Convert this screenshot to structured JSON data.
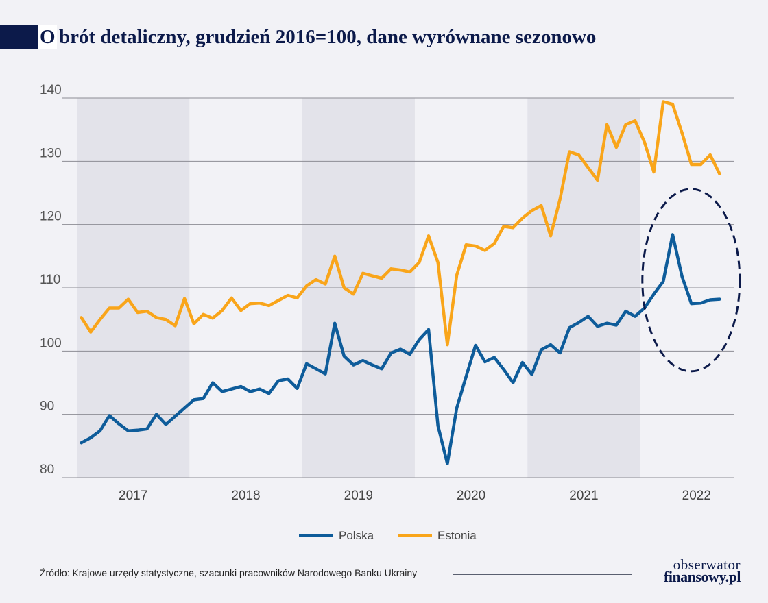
{
  "title": {
    "first_letter": "O",
    "rest": "brót detaliczny, grudzień 2016=100, dane wyrównane sezonowo"
  },
  "colors": {
    "polska": "#0e5c9a",
    "estonia": "#f9a51a",
    "band": "#e3e3ea",
    "grid": "#8c8c94",
    "ellipse": "#0c1a4a",
    "navy": "#0c1a4a"
  },
  "chart_data": {
    "type": "line",
    "ylim": [
      80,
      140
    ],
    "yticks": [
      80,
      90,
      100,
      110,
      120,
      130,
      140
    ],
    "xlim": [
      2016.5,
      2022.33
    ],
    "x_tick_labels": [
      {
        "label": "2017",
        "x": 2017.0
      },
      {
        "label": "2018",
        "x": 2018.0
      },
      {
        "label": "2019",
        "x": 2019.0
      },
      {
        "label": "2020",
        "x": 2020.0
      },
      {
        "label": "2021",
        "x": 2021.0
      },
      {
        "label": "2022",
        "x": 2022.0
      }
    ],
    "shaded_years": [
      [
        2016.5,
        2017.5
      ],
      [
        2018.5,
        2019.5
      ],
      [
        2020.5,
        2021.5
      ]
    ],
    "grid": true,
    "legend_position": "bottom-center",
    "annotation": {
      "type": "dashed-ellipse",
      "highlight_range": [
        2021.5,
        2022.33
      ]
    },
    "series": [
      {
        "name": "Polska",
        "color": "#0e5c9a",
        "x_start": 2016.54,
        "x_step": 0.0833,
        "values": [
          85.5,
          86.3,
          87.4,
          89.8,
          88.5,
          87.4,
          87.5,
          87.7,
          90.0,
          88.4,
          89.7,
          91.0,
          92.3,
          92.5,
          95.0,
          93.6,
          94.0,
          94.4,
          93.6,
          94.0,
          93.3,
          95.3,
          95.6,
          94.1,
          98.0,
          97.2,
          96.4,
          104.4,
          99.2,
          97.8,
          98.5,
          97.8,
          97.2,
          99.7,
          100.3,
          99.5,
          101.8,
          103.4,
          88.2,
          82.2,
          91.0,
          96.0,
          100.9,
          98.3,
          99.0,
          97.1,
          95.0,
          98.2,
          96.3,
          100.2,
          101.0,
          99.7,
          103.7,
          104.5,
          105.5,
          103.9,
          104.4,
          104.1,
          106.3,
          105.5,
          106.8,
          109.0,
          111.0,
          118.4,
          111.8,
          107.5,
          107.6,
          108.1,
          108.2
        ]
      },
      {
        "name": "Estonia",
        "color": "#f9a51a",
        "x_start": 2016.54,
        "x_step": 0.0833,
        "values": [
          105.3,
          103.0,
          105.0,
          106.8,
          106.8,
          108.2,
          106.1,
          106.3,
          105.3,
          105.0,
          104.0,
          108.3,
          104.3,
          105.8,
          105.2,
          106.4,
          108.4,
          106.4,
          107.5,
          107.6,
          107.2,
          108.0,
          108.8,
          108.4,
          110.3,
          111.3,
          110.6,
          115.0,
          110.0,
          109.0,
          112.3,
          111.9,
          111.5,
          113.0,
          112.8,
          112.5,
          114.0,
          118.2,
          114.0,
          101.0,
          112.0,
          116.8,
          116.6,
          115.9,
          117.0,
          119.7,
          119.5,
          121.0,
          122.2,
          123.0,
          118.2,
          124.0,
          131.5,
          131.0,
          129.0,
          127.0,
          135.8,
          132.2,
          135.8,
          136.4,
          133.0,
          128.3,
          139.4,
          139.0,
          134.5,
          129.5,
          129.5,
          131.0,
          128.0
        ]
      }
    ]
  },
  "legend": [
    {
      "label": "Polska",
      "color": "#0e5c9a"
    },
    {
      "label": "Estonia",
      "color": "#f9a51a"
    }
  ],
  "source": "Źródło: Krajowe urzędy statystyczne, szacunki pracowników Narodowego Banku Ukrainy",
  "logo": {
    "line1": "obserwator",
    "line2": "finansowy.pl"
  }
}
